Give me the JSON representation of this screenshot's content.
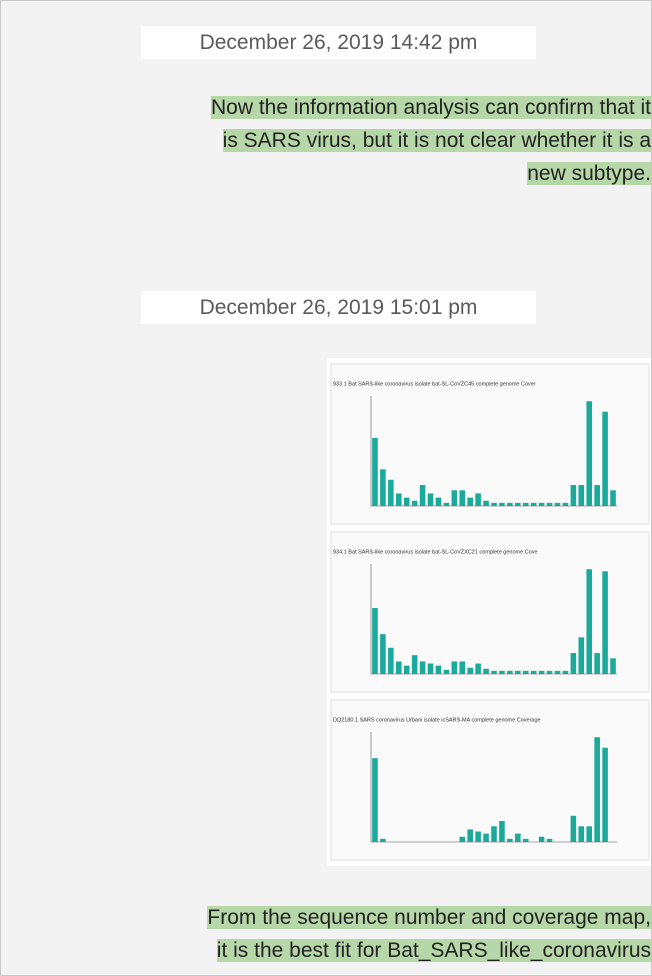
{
  "messages": [
    {
      "time": "December 26, 2019 14:42 pm",
      "text": [
        "Now the information analysis can confirm that it",
        "is SARS virus, but it is not clear whether it is a",
        "new subtype."
      ]
    },
    {
      "time": "December 26, 2019 15:01 pm"
    },
    {
      "text": [
        "From the sequence number and coverage map,",
        "it is the best fit for Bat_SARS_like_coronavirus"
      ]
    }
  ],
  "image": {
    "panels": [
      {
        "title": "933.1 Bat SARS-like coronavirus isolate bat-SL-CoVZC45 complete genome Cover",
        "ylim": [
          0,
          105
        ],
        "values": [
          65,
          35,
          25,
          12,
          8,
          5,
          20,
          12,
          8,
          3,
          15,
          15,
          8,
          12,
          5,
          3,
          3,
          3,
          3,
          3,
          3,
          3,
          3,
          3,
          3,
          20,
          20,
          100,
          20,
          90,
          15
        ]
      },
      {
        "title": "934.1 Bat SARS-like coronavirus isolate bat-SL-CoVZXC21 complete genome Cove",
        "ylim": [
          0,
          105
        ],
        "values": [
          63,
          38,
          25,
          12,
          8,
          18,
          12,
          10,
          8,
          4,
          12,
          12,
          6,
          10,
          5,
          3,
          3,
          3,
          3,
          3,
          3,
          3,
          3,
          3,
          3,
          20,
          35,
          100,
          20,
          98,
          15
        ]
      },
      {
        "title": "DQ2180.1 SARS coronavirus Urbani isolate icSARS-MA complete genome Coverage",
        "ylim": [
          0,
          105
        ],
        "values": [
          80,
          3,
          0,
          0,
          0,
          0,
          0,
          0,
          0,
          0,
          0,
          5,
          12,
          10,
          8,
          15,
          20,
          3,
          8,
          3,
          0,
          5,
          3,
          0,
          0,
          25,
          15,
          15,
          100,
          90,
          0
        ]
      }
    ]
  }
}
